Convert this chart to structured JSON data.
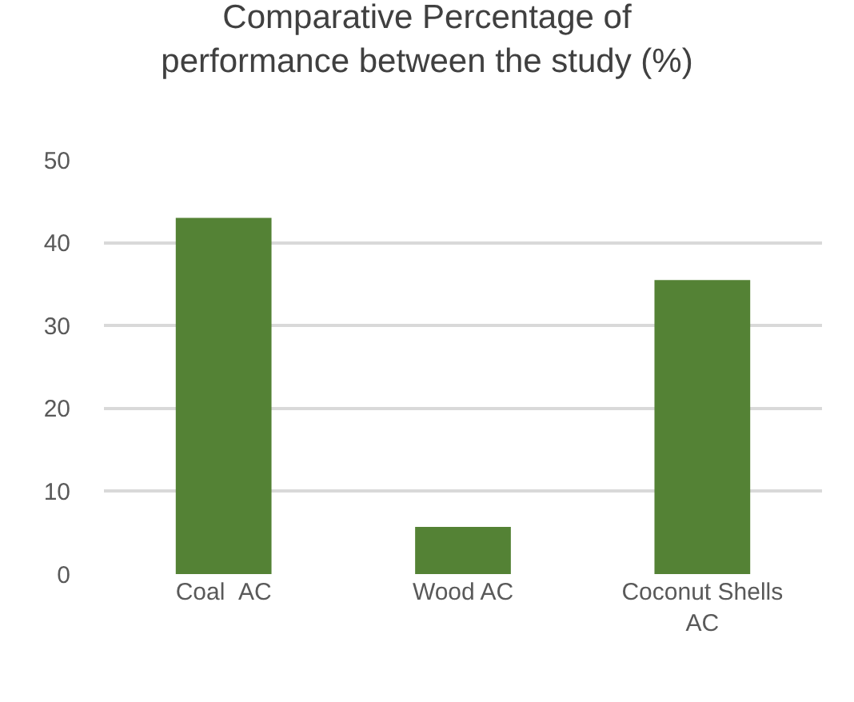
{
  "chart_data": {
    "type": "bar",
    "title": "Comparative Percentage of performance between the study (%)",
    "categories": [
      "Coal  AC",
      "Wood AC",
      "Coconut Shells AC"
    ],
    "values": [
      43,
      5.7,
      35.5
    ],
    "color": "#548235",
    "ylim": [
      0,
      50
    ],
    "yticks": [
      0,
      10,
      20,
      30,
      40,
      50
    ],
    "grid": "y"
  }
}
